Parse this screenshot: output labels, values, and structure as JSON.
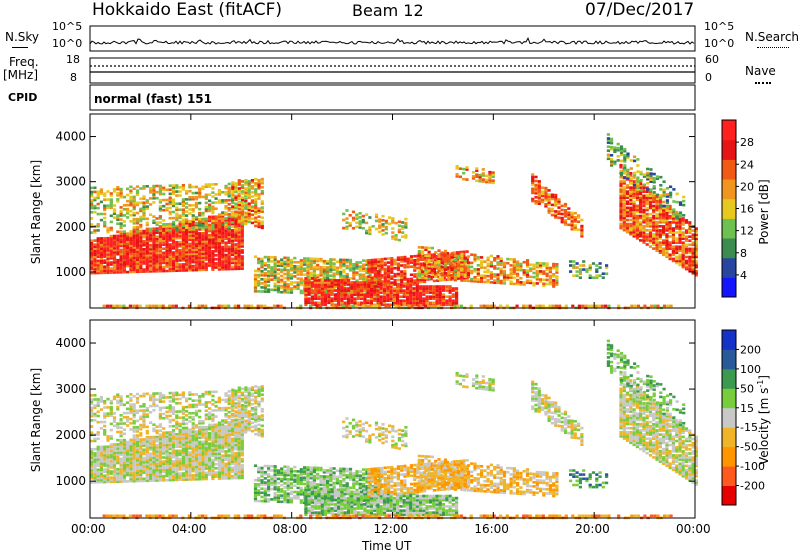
{
  "header": {
    "station": "Hokkaido East (fitACF)",
    "beam": "Beam 12",
    "date": "07/Dec/2017"
  },
  "noise_panel": {
    "left_label": "N.Sky",
    "right_label": "N.Search",
    "ticks": [
      "10^5",
      "10^0"
    ]
  },
  "freq_panel": {
    "left_label": "Freq.",
    "left_unit": "[MHz]",
    "left_ticks": [
      "18",
      "8"
    ],
    "right_label": "Nave",
    "right_ticks": [
      "60",
      "0"
    ]
  },
  "cpid": {
    "label": "CPID",
    "mode": "normal (fast) 151"
  },
  "colors": {
    "power_scale": [
      "#1414ff",
      "#2846a0",
      "#3c8c50",
      "#6ec050",
      "#e6c81e",
      "#f0961e",
      "#f05a14",
      "#e61414",
      "#ff2020"
    ],
    "velocity_scale": [
      "#e60000",
      "#ff5a1e",
      "#ff9600",
      "#f0b428",
      "#c8c8c8",
      "#78cd3c",
      "#3c9a50",
      "#285a9a",
      "#1432c8"
    ]
  },
  "chart_data": [
    {
      "type": "heatmap",
      "name": "power",
      "ylabel": "Slant Range [km]",
      "xlim": [
        "00:00",
        "24:00"
      ],
      "ylim": [
        200,
        4500
      ],
      "yticks": [
        "4000",
        "3000",
        "2000",
        "1000"
      ],
      "xticks": [
        "00:00",
        "04:00",
        "08:00",
        "12:00",
        "16:00",
        "20:00",
        "00:00"
      ],
      "colorbar_label": "Power [dB]",
      "colorbar_ticks": [
        "28",
        "24",
        "20",
        "16",
        "12",
        "8",
        "4"
      ],
      "colorbar_range": [
        0,
        32
      ]
    },
    {
      "type": "heatmap",
      "name": "velocity",
      "ylabel": "Slant Range [km]",
      "xlim": [
        "00:00",
        "24:00"
      ],
      "ylim": [
        200,
        4500
      ],
      "yticks": [
        "4000",
        "3000",
        "2000",
        "1000"
      ],
      "xticks": [
        "00:00",
        "04:00",
        "08:00",
        "12:00",
        "16:00",
        "20:00",
        "00:00"
      ],
      "xlabel": "Time UT",
      "colorbar_label": "Velocity [m s",
      "colorbar_label_sup": "-1",
      "colorbar_label_end": "]",
      "colorbar_ticks": [
        "200",
        "100",
        "50",
        "15",
        "-15",
        "-50",
        "-100",
        "-200"
      ]
    }
  ]
}
